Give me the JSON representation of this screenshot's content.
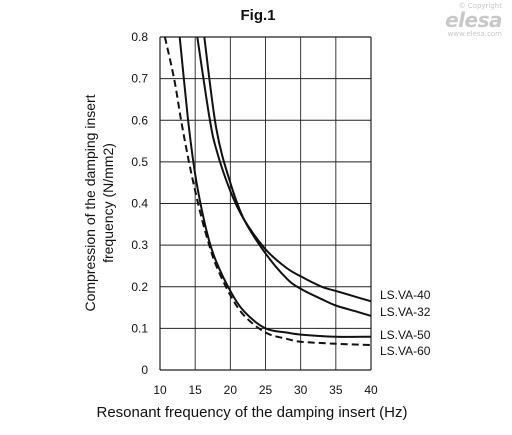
{
  "watermark": {
    "copyright": "© Copyright",
    "logo": "elesa",
    "url": "www.elesa.com"
  },
  "chart_data": {
    "type": "line",
    "title": "Fig.1",
    "xlabel": "Resonant frequency of the damping insert (Hz)",
    "ylabel": "Compression of the damping insert frequency (N/mm2)",
    "xlim": [
      10,
      40
    ],
    "ylim": [
      0,
      0.8
    ],
    "xticks": [
      10,
      15,
      20,
      25,
      30,
      35,
      40
    ],
    "xtick_labels": [
      "10",
      "15",
      "20",
      "25",
      "30",
      "35",
      "40"
    ],
    "yticks": [
      0,
      0.1,
      0.2,
      0.3,
      0.4,
      0.5,
      0.6,
      0.7,
      0.8
    ],
    "ytick_labels": [
      "0",
      "0.1",
      "0.2",
      "0.3",
      "0.4",
      "0.5",
      "0.6",
      "0.7",
      "0.8"
    ],
    "grid": true,
    "series": [
      {
        "name": "LS.VA-40",
        "style": "solid",
        "x": [
          15.3,
          17,
          18,
          20,
          22,
          25,
          28,
          30,
          33,
          35,
          38,
          40
        ],
        "y": [
          0.8,
          0.61,
          0.53,
          0.43,
          0.36,
          0.29,
          0.245,
          0.225,
          0.2,
          0.19,
          0.175,
          0.165
        ]
      },
      {
        "name": "LS.VA-32",
        "style": "solid",
        "x": [
          16.3,
          18,
          20,
          22,
          25,
          28,
          30,
          33,
          35,
          38,
          40
        ],
        "y": [
          0.8,
          0.58,
          0.45,
          0.36,
          0.28,
          0.22,
          0.195,
          0.17,
          0.155,
          0.14,
          0.13
        ]
      },
      {
        "name": "LS.VA-50",
        "style": "solid",
        "x": [
          12.8,
          14,
          15,
          16,
          17,
          18,
          20,
          22,
          25,
          28,
          30,
          35,
          40
        ],
        "y": [
          0.8,
          0.6,
          0.47,
          0.38,
          0.31,
          0.26,
          0.19,
          0.14,
          0.1,
          0.09,
          0.085,
          0.08,
          0.08
        ]
      },
      {
        "name": "LS.VA-60",
        "style": "dashed",
        "x": [
          10.7,
          12,
          13,
          14,
          15,
          16,
          17,
          18,
          20,
          22,
          25,
          28,
          30,
          35,
          40
        ],
        "y": [
          0.8,
          0.7,
          0.6,
          0.51,
          0.43,
          0.36,
          0.3,
          0.25,
          0.18,
          0.13,
          0.09,
          0.075,
          0.068,
          0.063,
          0.06
        ]
      }
    ]
  }
}
